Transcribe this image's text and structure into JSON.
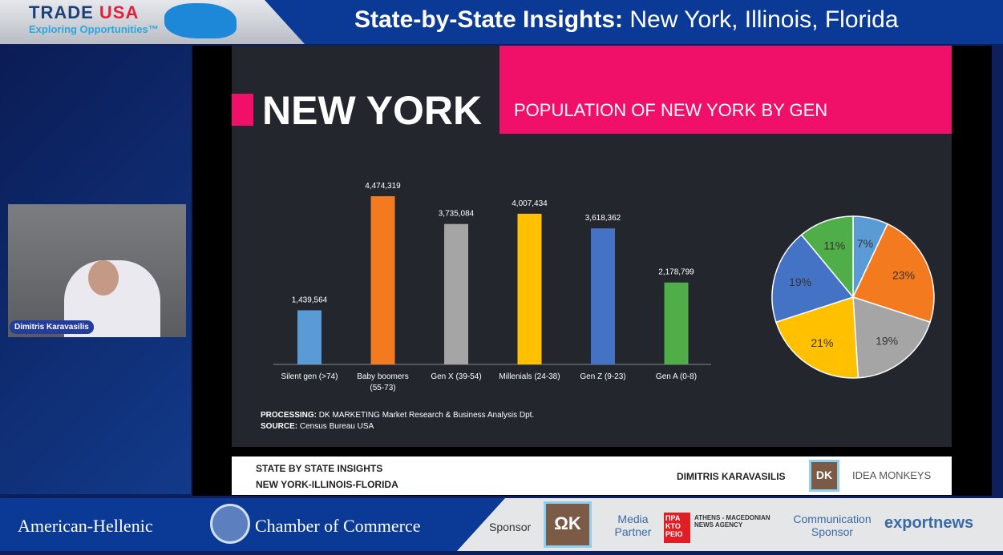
{
  "header": {
    "brand_main": "TRADE ",
    "brand_accent": "USA",
    "brand_sub": "Exploring Opportunities™",
    "title_bold": "State-by-State Insights:",
    "title_rest": " New York, Illinois, Florida"
  },
  "participant": {
    "name": "Dimitris Karavasilis"
  },
  "slide": {
    "heading": "NEW YORK",
    "subtitle": "POPULATION OF NEW YORK BY GEN",
    "processing_label": "PROCESSING:",
    "processing_text": " DK MARKETING Market Research & Business Analysis Dpt.",
    "source_label": "SOURCE:",
    "source_text": " Census Bureau USA",
    "footer": {
      "line1": "STATE BY STATE INSIGHTS",
      "line2": "NEW YORK-ILLINOIS-FLORIDA",
      "presenter": "DIMITRIS KARAVASILIS",
      "logo1": "DK",
      "logo2": "IDEA MONKEYS"
    }
  },
  "chart_data": [
    {
      "type": "bar",
      "title": "",
      "categories": [
        "Silent gen (>74)",
        "Baby boomers (55-73)",
        "Gen X (39-54)",
        "Millenials (24-38)",
        "Gen Z (9-23)",
        "Gen A (0-8)"
      ],
      "values": [
        1439564,
        4474319,
        3735084,
        4007434,
        3618362,
        2178799
      ],
      "labels": [
        "1,439,564",
        "4,474,319",
        "3,735,084",
        "4,007,434",
        "3,618,362",
        "2,178,799"
      ],
      "colors": [
        "#5b9bd5",
        "#f47a20",
        "#a5a5a5",
        "#ffc000",
        "#4472c4",
        "#4fae48"
      ],
      "ylim": [
        0,
        4474319
      ]
    },
    {
      "type": "pie",
      "values": [
        7,
        23,
        19,
        21,
        19,
        11
      ],
      "labels": [
        "7%",
        "23%",
        "19%",
        "21%",
        "19%",
        "11%"
      ],
      "colors": [
        "#5b9bd5",
        "#f47a20",
        "#a5a5a5",
        "#ffc000",
        "#4472c4",
        "#4fae48"
      ]
    }
  ],
  "bottom": {
    "org1": "American-Hellenic",
    "org2": "Chamber of Commerce",
    "sponsor": "Sponsor",
    "media": "Media Partner",
    "ana": "ATHENS - MACEDONIAN NEWS AGENCY",
    "ana_logo": "ΠΡΑ ΚΤΟ ΡΕΙΟ",
    "comm": "Communication Sponsor",
    "exportnews": "exportnews"
  }
}
